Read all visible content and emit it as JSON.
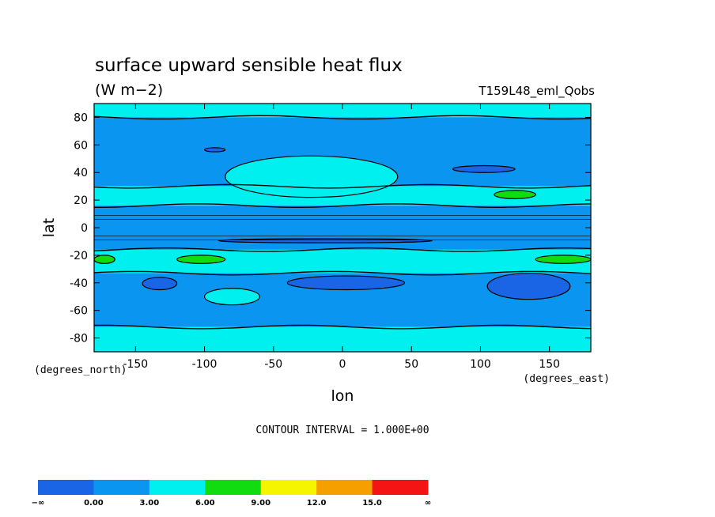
{
  "chart_data": {
    "type": "contour",
    "title": "surface upward sensible heat flux",
    "units": "(W m−2)",
    "run_label": "T159L48_eml_Qobs",
    "xlabel": "lon",
    "ylabel": "lat",
    "x_units": "(degrees_east)",
    "y_units": "(degrees_north)",
    "xlim": [
      -180,
      180
    ],
    "ylim": [
      -90,
      90
    ],
    "x_ticks": [
      -150,
      -100,
      -50,
      0,
      50,
      100,
      150
    ],
    "y_ticks": [
      80,
      60,
      40,
      20,
      0,
      -20,
      -40,
      -60,
      -80
    ],
    "contour_interval_text": "CONTOUR INTERVAL = 1.000E+00",
    "colorbar": {
      "labels": [
        "−∞",
        "0.00",
        "3.00",
        "6.00",
        "9.00",
        "12.0",
        "15.0",
        "∞"
      ],
      "colors": [
        "#1a64e6",
        "#0a96f0",
        "#00f0f0",
        "#10dc10",
        "#f5f500",
        "#f5a000",
        "#f51414"
      ]
    },
    "zonal_bands": [
      {
        "lat_range": [
          80,
          90
        ],
        "level": "3-6"
      },
      {
        "lat_range": [
          30,
          80
        ],
        "level": "0-3"
      },
      {
        "lat_range": [
          16,
          30
        ],
        "level": "3-6"
      },
      {
        "lat_range": [
          -16,
          16
        ],
        "level": "0-3"
      },
      {
        "lat_range": [
          -33,
          -16
        ],
        "level": "3-6"
      },
      {
        "lat_range": [
          -72,
          -33
        ],
        "level": "0-3"
      },
      {
        "lat_range": [
          -90,
          -72
        ],
        "level": "3-6"
      }
    ],
    "features": [
      {
        "kind": "cyan-region",
        "lon": [
          -85,
          40
        ],
        "lat": [
          22,
          52
        ],
        "level": "3-6"
      },
      {
        "kind": "cyan-region",
        "lon": [
          -100,
          -60
        ],
        "lat": [
          -56,
          -44
        ],
        "level": "3-6"
      },
      {
        "kind": "green-patch",
        "lon": [
          140,
          180
        ],
        "lat": [
          -26,
          -20
        ],
        "level": "6-9"
      },
      {
        "kind": "green-patch",
        "lon": [
          -180,
          -165
        ],
        "lat": [
          -26,
          -20
        ],
        "level": "6-9"
      },
      {
        "kind": "green-patch",
        "lon": [
          -120,
          -85
        ],
        "lat": [
          -26,
          -20
        ],
        "level": "6-9"
      },
      {
        "kind": "green-patch",
        "lon": [
          110,
          140
        ],
        "lat": [
          21,
          27
        ],
        "level": "6-9"
      },
      {
        "kind": "min-region",
        "lon": [
          -145,
          -120
        ],
        "lat": [
          -45,
          -36
        ],
        "level": "<0"
      },
      {
        "kind": "min-region",
        "lon": [
          -40,
          45
        ],
        "lat": [
          -45,
          -35
        ],
        "level": "<0"
      },
      {
        "kind": "min-region",
        "lon": [
          105,
          165
        ],
        "lat": [
          -52,
          -33
        ],
        "level": "<0"
      },
      {
        "kind": "min-region",
        "lon": [
          -100,
          -85
        ],
        "lat": [
          55,
          58
        ],
        "level": "<0"
      },
      {
        "kind": "min-region",
        "lon": [
          80,
          125
        ],
        "lat": [
          40,
          45
        ],
        "level": "<0"
      },
      {
        "kind": "min-region",
        "lon": [
          -90,
          65
        ],
        "lat": [
          -11,
          -8
        ],
        "level": "<0"
      }
    ]
  }
}
